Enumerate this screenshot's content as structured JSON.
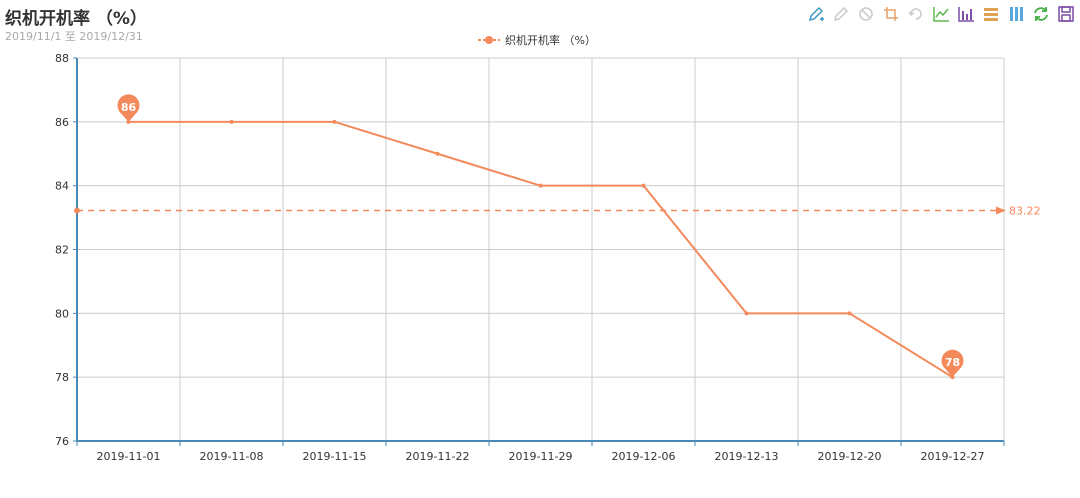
{
  "header": {
    "title": "织机开机率 （%）",
    "subtitle": "2019/11/1 至 2019/12/31"
  },
  "legend": {
    "label": "织机开机率 （%）"
  },
  "toolbox": {
    "tools": [
      {
        "name": "mark-icon",
        "color": "#3e98c5"
      },
      {
        "name": "mark-undo-icon",
        "color": "#c9c9c9"
      },
      {
        "name": "mark-clear-icon",
        "color": "#c9c9c9"
      },
      {
        "name": "data-zoom-icon",
        "color": "#e5a36b"
      },
      {
        "name": "data-zoom-reset-icon",
        "color": "#c9c9c9"
      },
      {
        "name": "line-chart-icon",
        "color": "#5fb84f"
      },
      {
        "name": "bar-chart-icon",
        "color": "#7c4ea8"
      },
      {
        "name": "stack-icon",
        "color": "#e0a155"
      },
      {
        "name": "tiled-icon",
        "color": "#5aa9de"
      },
      {
        "name": "refresh-icon",
        "color": "#3fae3f"
      },
      {
        "name": "save-image-icon",
        "color": "#7d4aa6"
      }
    ]
  },
  "chart_data": {
    "type": "line",
    "title": "织机开机率 （%）",
    "subtitle": "2019/11/1 至 2019/12/31",
    "categories": [
      "2019-11-01",
      "2019-11-08",
      "2019-11-15",
      "2019-11-22",
      "2019-11-29",
      "2019-12-06",
      "2019-12-13",
      "2019-12-20",
      "2019-12-27"
    ],
    "series": [
      {
        "name": "织机开机率 （%）",
        "values": [
          86,
          86,
          86,
          85,
          84,
          84,
          80,
          80,
          78
        ]
      }
    ],
    "ylim": [
      76,
      88
    ],
    "yticks": [
      76,
      78,
      80,
      82,
      84,
      86,
      88
    ],
    "markPoints": [
      {
        "label": "86",
        "index": 0,
        "value": 86
      },
      {
        "label": "78",
        "index": 8,
        "value": 78
      }
    ],
    "markLine": {
      "label": "83.22",
      "value": 83.22
    },
    "grid": true,
    "legend_position": "top-center",
    "line_color": "#f4895b",
    "xlabel": "",
    "ylabel": ""
  }
}
